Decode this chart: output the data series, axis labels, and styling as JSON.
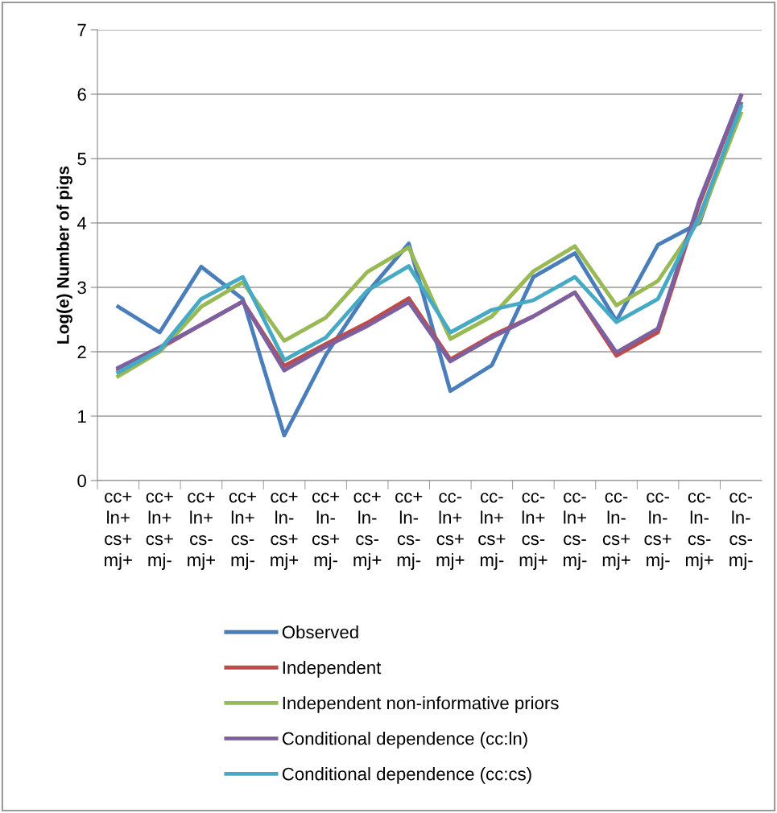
{
  "chart_data": {
    "type": "line",
    "ylabel": "Log(e) Number of pigs",
    "categories": [
      "cc+\nln+\ncs+\nmj+",
      "cc+\nln+\ncs+\nmj-",
      "cc+\nln+\ncs-\nmj+",
      "cc+\nln+\ncs-\nmj-",
      "cc+\nln-\ncs+\nmj+",
      "cc+\nln-\ncs+\nmj-",
      "cc+\nln-\ncs-\nmj+",
      "cc+\nln-\ncs-\nmj-",
      "cc-\nln+\ncs+\nmj+",
      "cc-\nln+\ncs+\nmj-",
      "cc-\nln+\ncs-\nmj+",
      "cc-\nln+\ncs-\nmj-",
      "cc-\nln-\ncs+\nmj+",
      "cc-\nln-\ncs+\nmj-",
      "cc-\nln-\ncs-\nmj+",
      "cc-\nln-\ncs-\nmj-"
    ],
    "series": [
      {
        "name": "Observed",
        "color": "#4a7ebb",
        "values": [
          2.7,
          2.3,
          3.32,
          2.82,
          0.7,
          1.95,
          2.92,
          3.68,
          1.39,
          1.79,
          3.16,
          3.53,
          2.48,
          3.66,
          4.0,
          5.85
        ]
      },
      {
        "name": "Independent",
        "color": "#be4b48",
        "values": [
          1.72,
          2.05,
          2.42,
          2.78,
          1.78,
          2.12,
          2.45,
          2.83,
          1.88,
          2.25,
          2.55,
          2.92,
          1.94,
          2.3,
          4.3,
          5.97
        ]
      },
      {
        "name": "Independent non-informative priors",
        "color": "#98b954",
        "values": [
          1.62,
          2.0,
          2.7,
          3.08,
          2.17,
          2.53,
          3.24,
          3.62,
          2.2,
          2.55,
          3.25,
          3.64,
          2.72,
          3.1,
          4.05,
          5.7
        ]
      },
      {
        "name": "Conditional dependence (cc:ln)",
        "color": "#7d60a0",
        "values": [
          1.75,
          2.07,
          2.42,
          2.78,
          1.71,
          2.08,
          2.4,
          2.77,
          1.85,
          2.22,
          2.55,
          2.92,
          1.99,
          2.36,
          4.35,
          5.98
        ]
      },
      {
        "name": "Conditional dependence (cc:cs)",
        "color": "#46aac5",
        "values": [
          1.68,
          2.03,
          2.82,
          3.16,
          1.87,
          2.22,
          2.95,
          3.33,
          2.3,
          2.65,
          2.8,
          3.16,
          2.46,
          2.82,
          4.1,
          5.8
        ]
      }
    ],
    "ylim": [
      0,
      7
    ],
    "yticks": [
      0,
      1,
      2,
      3,
      4,
      5,
      6,
      7
    ],
    "grid": "y",
    "legend": "bottom",
    "marker": "none",
    "line_style": "solid"
  }
}
